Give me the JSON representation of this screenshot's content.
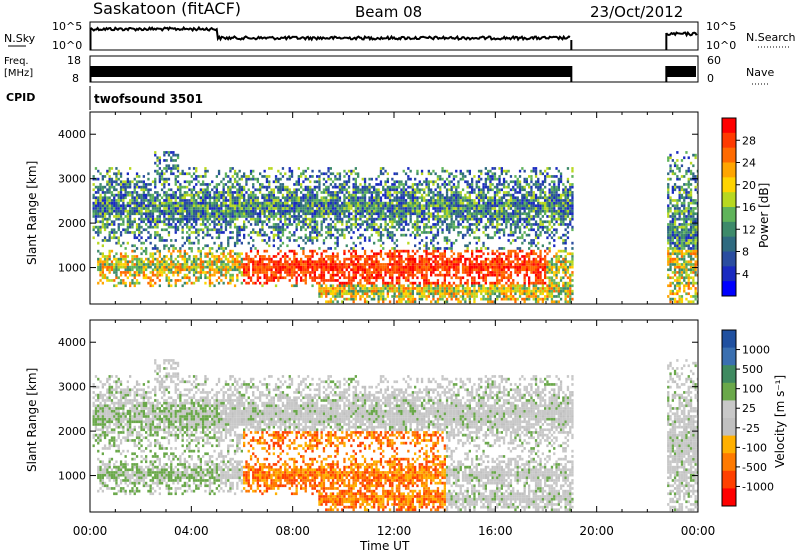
{
  "header": {
    "station": "Saskatoon (fitACF)",
    "beam": "Beam 08",
    "date": "23/Oct/2012"
  },
  "noise_panel": {
    "left_label": "N.Sky",
    "left_ticks": [
      "10^5",
      "10^0"
    ],
    "right_label": "N.Search",
    "right_ticks": [
      "10^5",
      "10^0"
    ]
  },
  "freq_panel": {
    "left_label_1": "Freq.",
    "left_label_2": "[MHz]",
    "left_ticks": [
      "18",
      "8"
    ],
    "right_label": "Nave",
    "right_ticks": [
      "60",
      "0"
    ]
  },
  "cpid_panel": {
    "label": "CPID",
    "value": "twofsound 3501"
  },
  "x_axis": {
    "title": "Time UT",
    "ticks": [
      "00:00",
      "04:00",
      "08:00",
      "12:00",
      "16:00",
      "20:00",
      "00:00"
    ]
  },
  "power_panel": {
    "y_title": "Slant Range [km]",
    "y_ticks": [
      "4000",
      "3000",
      "2000",
      "1000"
    ],
    "cbar_title": "Power [dB]",
    "cbar_ticks": [
      "28",
      "24",
      "20",
      "16",
      "12",
      "8",
      "4"
    ],
    "cbar_colors": [
      "#ff0000",
      "#ff3a00",
      "#ff6a00",
      "#ffa500",
      "#ffd400",
      "#b8d820",
      "#5fb35a",
      "#3d8a6a",
      "#2f6a80",
      "#2a4da0",
      "#1a2ac0",
      "#0000ff"
    ]
  },
  "velocity_panel": {
    "y_title": "Slant Range [km]",
    "y_ticks": [
      "4000",
      "3000",
      "2000",
      "1000"
    ],
    "cbar_title": "Velocity [m s⁻¹]",
    "cbar_ticks": [
      "1000",
      "500",
      "100",
      "25",
      "-25",
      "-100",
      "-500",
      "-1000"
    ],
    "cbar_colors": [
      "#2050a0",
      "#3a6fb0",
      "#3f8a60",
      "#6aa84a",
      "#c8c8c8",
      "#c0c0c0",
      "#ffb000",
      "#ff7a00",
      "#ff4000",
      "#ff0000"
    ]
  },
  "chart_data": {
    "type": "heatmap",
    "x_range_hours": [
      0,
      24
    ],
    "y_range_km": [
      180,
      4500
    ],
    "observation_gap_hours": [
      19.0,
      22.75
    ],
    "features": [
      {
        "name": "main-echo-band",
        "t_start": 0.2,
        "t_end": 19,
        "range_km": [
          800,
          1200
        ]
      },
      {
        "name": "far-echo-band",
        "t_start": 0,
        "t_end": 19,
        "range_km": [
          1800,
          2900
        ]
      },
      {
        "name": "near-echo-band",
        "t_start": 9,
        "t_end": 19,
        "range_km": [
          300,
          600
        ]
      },
      {
        "name": "late-segment",
        "t_start": 22.75,
        "t_end": 24,
        "range_km": [
          300,
          3000
        ]
      }
    ]
  }
}
